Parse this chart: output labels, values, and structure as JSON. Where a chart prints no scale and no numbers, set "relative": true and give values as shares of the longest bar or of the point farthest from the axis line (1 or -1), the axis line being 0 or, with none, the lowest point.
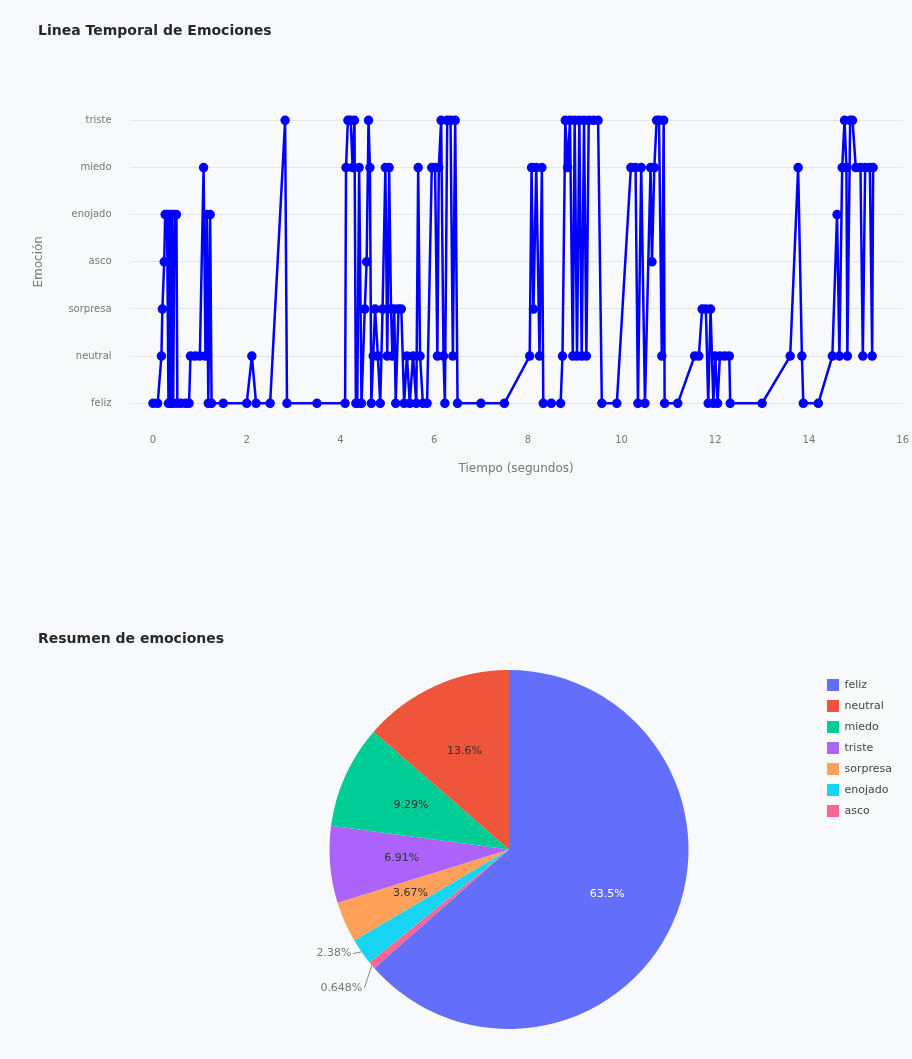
{
  "chart_data": [
    {
      "type": "line",
      "title": "Linea Temporal de Emociones",
      "xlabel": "Tiempo (segundos)",
      "ylabel": "Emoción",
      "marker": "circle",
      "line_style": "solid",
      "grid": "y",
      "legend": false,
      "relative": true,
      "xlim": [
        -0.5,
        16
      ],
      "xticks": [
        0,
        2,
        4,
        6,
        8,
        10,
        12,
        14,
        16
      ],
      "y_categories": [
        "triste",
        "miedo",
        "enojado",
        "asco",
        "sorpresa",
        "neutral",
        "feliz"
      ],
      "series": [
        {
          "color": "#0000ff",
          "x": [
            0,
            0.1,
            0.18,
            0.2,
            0.24,
            0.26,
            0.3,
            0.33,
            0.35,
            0.38,
            0.4,
            0.43,
            0.46,
            0.5,
            0.52,
            0.6,
            0.7,
            0.77,
            0.8,
            0.9,
            1.0,
            1.08,
            1.12,
            1.15,
            1.18,
            1.22,
            1.25,
            1.5,
            2.0,
            2.11,
            2.2,
            2.5,
            2.82,
            2.86,
            3.5,
            4.1,
            4.12,
            4.16,
            4.22,
            4.26,
            4.3,
            4.33,
            4.36,
            4.4,
            4.45,
            4.52,
            4.56,
            4.6,
            4.63,
            4.66,
            4.7,
            4.74,
            4.8,
            4.85,
            4.9,
            4.96,
            5.0,
            5.04,
            5.08,
            5.11,
            5.15,
            5.18,
            5.24,
            5.3,
            5.36,
            5.42,
            5.48,
            5.55,
            5.62,
            5.66,
            5.7,
            5.76,
            5.85,
            5.95,
            6.02,
            6.07,
            6.1,
            6.15,
            6.2,
            6.23,
            6.28,
            6.35,
            6.4,
            6.45,
            6.5,
            7.0,
            7.5,
            8.04,
            8.08,
            8.12,
            8.18,
            8.25,
            8.3,
            8.33,
            8.5,
            8.7,
            8.74,
            8.8,
            8.85,
            8.9,
            8.96,
            9.0,
            9.05,
            9.1,
            9.15,
            9.2,
            9.25,
            9.3,
            9.4,
            9.5,
            9.58,
            9.9,
            10.2,
            10.3,
            10.35,
            10.42,
            10.5,
            10.62,
            10.65,
            10.7,
            10.75,
            10.8,
            10.86,
            10.9,
            10.92,
            11.2,
            11.56,
            11.65,
            11.72,
            11.8,
            11.85,
            11.9,
            11.96,
            12.0,
            12.05,
            12.1,
            12.2,
            12.3,
            12.32,
            13.0,
            13.6,
            13.77,
            13.85,
            13.88,
            14.2,
            14.5,
            14.6,
            14.65,
            14.71,
            14.76,
            14.8,
            14.82,
            14.88,
            14.93,
            15.0,
            15.1,
            15.15,
            15.2,
            15.3,
            15.35,
            15.37
          ],
          "values": [
            0,
            0,
            0.167,
            0.333,
            0.5,
            0.667,
            0.667,
            0,
            0.667,
            0,
            0.667,
            0,
            0.667,
            0.667,
            0,
            0,
            0,
            0,
            0.167,
            0.167,
            0.167,
            0.833,
            0.167,
            0.667,
            0,
            0.667,
            0,
            0,
            0,
            0.167,
            0,
            0,
            1,
            0,
            0,
            0,
            0.833,
            1,
            1,
            0.833,
            1,
            0,
            0,
            0.833,
            0,
            0.333,
            0.5,
            1,
            0.833,
            0,
            0.167,
            0.333,
            0.167,
            0,
            0.333,
            0.833,
            0.167,
            0.833,
            0.333,
            0.167,
            0.333,
            0,
            0.333,
            0.333,
            0,
            0.167,
            0,
            0.167,
            0,
            0.833,
            0.167,
            0,
            0,
            0.833,
            0.833,
            0.167,
            0.833,
            1,
            0.167,
            0,
            1,
            1,
            0.167,
            1,
            0,
            0,
            0,
            0.167,
            0.833,
            0.333,
            0.833,
            0.167,
            0.833,
            0,
            0,
            0,
            0.167,
            1,
            0.833,
            1,
            0.167,
            1,
            0.167,
            1,
            0.167,
            1,
            0.167,
            1,
            1,
            1,
            0,
            0,
            0.833,
            0.833,
            0,
            0.833,
            0,
            0.833,
            0.5,
            0.833,
            1,
            1,
            0.167,
            1,
            0,
            0,
            0.167,
            0.167,
            0.333,
            0.333,
            0,
            0.333,
            0,
            0.167,
            0,
            0.167,
            0.167,
            0.167,
            0,
            0,
            0.167,
            0.833,
            0.167,
            0,
            0,
            0.167,
            0.667,
            0.167,
            0.833,
            1,
            0.833,
            0.167,
            1,
            1,
            0.833,
            0.833,
            0.167,
            0.833,
            0.833,
            0.167,
            0.833
          ]
        }
      ]
    },
    {
      "type": "pie",
      "title": "Resumen de emociones",
      "legend": "top right",
      "categories": [
        "feliz",
        "neutral",
        "miedo",
        "triste",
        "sorpresa",
        "enojado",
        "asco"
      ],
      "values": [
        63.5,
        13.6,
        9.29,
        6.91,
        3.67,
        2.38,
        0.648
      ],
      "colors": [
        "#636efa",
        "#ef553b",
        "#00cc96",
        "#ab63fa",
        "#ffa15a",
        "#19d3f3",
        "#ff6692"
      ],
      "value_labels": [
        "63.5%",
        "13.6%",
        "9.29%",
        "6.91%",
        "3.67%",
        "2.38%",
        "0.648%"
      ]
    }
  ]
}
